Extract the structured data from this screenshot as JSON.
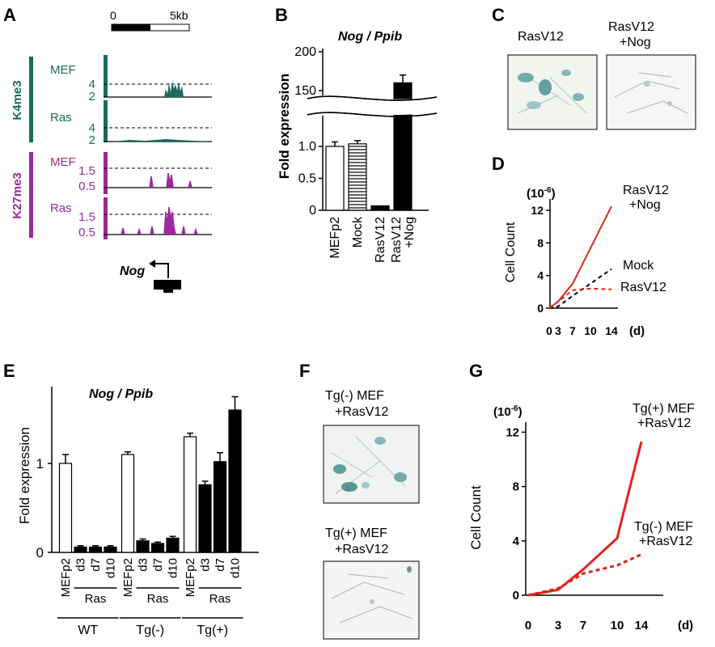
{
  "figure": {
    "panels": {
      "A": "A",
      "B": "B",
      "C": "C",
      "D": "D",
      "E": "E",
      "F": "F",
      "G": "G"
    }
  },
  "panel_a": {
    "scale_start": "0",
    "scale_end": "5kb",
    "k4_group": "K4me3",
    "k27_group": "K27me3",
    "track_labels": [
      "MEF",
      "Ras",
      "MEF",
      "Ras"
    ],
    "k4_ticks": [
      "4",
      "2"
    ],
    "k27_ticks": [
      "1.5",
      "0.5"
    ],
    "gene": "Nog",
    "colors": {
      "k4me3": "#1a6b5a",
      "k27me3": "#9b2a9b"
    }
  },
  "panel_c": {
    "label_left": "RasV12",
    "label_right_line1": "RasV12",
    "label_right_line2": "+Nog"
  },
  "panel_f": {
    "top_line1": "Tg(-) MEF",
    "top_line2": "+RasV12",
    "bottom_line1": "Tg(+) MEF",
    "bottom_line2": "+RasV12"
  },
  "chart_data": [
    {
      "id": "B",
      "type": "bar",
      "title": "Nog / Ppib",
      "ylabel": "Fold expression",
      "categories": [
        "MEFp2",
        "Mock",
        "RasV12",
        "RasV12\n+Nog"
      ],
      "values": [
        1.0,
        1.04,
        0.07,
        160
      ],
      "errors": [
        0.07,
        0.05,
        0.0,
        10
      ],
      "fills": [
        "white",
        "hatched",
        "black",
        "black"
      ],
      "yticks": [
        "0",
        "0.5",
        "1.0",
        "150",
        "200"
      ],
      "broken_axis": true
    },
    {
      "id": "D",
      "type": "line",
      "ylabel": "Cell Count",
      "unit": "(10",
      "unit_exp": "-6",
      "unit_close": ")",
      "x": [
        0,
        3,
        7,
        10,
        14
      ],
      "xticks": [
        "0",
        "3",
        "7",
        "10",
        "14"
      ],
      "x_unit": "(d)",
      "yticks": [
        "0",
        "4",
        "8",
        "12"
      ],
      "ylim": [
        0,
        13
      ],
      "series": [
        {
          "name": "RasV12\n+Nog",
          "label_line1": "RasV12",
          "label_line2": "+Nog",
          "values": [
            0,
            0.8,
            3.0,
            null,
            12.5
          ],
          "color": "#e0241b",
          "dash": false
        },
        {
          "name": "Mock",
          "label_line1": "Mock",
          "values": [
            0,
            0.2,
            1.5,
            3.0,
            4.8
          ],
          "color": "#000000",
          "dash": true
        },
        {
          "name": "RasV12",
          "label_line1": "RasV12",
          "values": [
            0,
            0.8,
            2.2,
            2.4,
            2.3
          ],
          "color": "#e0241b",
          "dash": true
        }
      ]
    },
    {
      "id": "E",
      "type": "bar",
      "title": "Nog / Ppib",
      "ylabel": "Fold expression",
      "yticks": [
        "0",
        "1"
      ],
      "ylim": [
        0,
        1.8
      ],
      "groups": [
        {
          "name": "WT",
          "sub": "Ras",
          "bars": [
            {
              "label": "MEFp2",
              "value": 1.0,
              "err": 0.1,
              "fill": "white"
            },
            {
              "label": "d3",
              "value": 0.06,
              "err": 0.015,
              "fill": "black"
            },
            {
              "label": "d7",
              "value": 0.06,
              "err": 0.015,
              "fill": "black"
            },
            {
              "label": "d10",
              "value": 0.06,
              "err": 0.015,
              "fill": "black"
            }
          ]
        },
        {
          "name": "Tg(-)",
          "sub": "Ras",
          "bars": [
            {
              "label": "MEFp2",
              "value": 1.1,
              "err": 0.03,
              "fill": "white"
            },
            {
              "label": "d3",
              "value": 0.13,
              "err": 0.02,
              "fill": "black"
            },
            {
              "label": "d7",
              "value": 0.1,
              "err": 0.015,
              "fill": "black"
            },
            {
              "label": "d10",
              "value": 0.16,
              "err": 0.02,
              "fill": "black"
            }
          ]
        },
        {
          "name": "Tg(+)",
          "sub": "Ras",
          "bars": [
            {
              "label": "MEFp2",
              "value": 1.3,
              "err": 0.04,
              "fill": "white"
            },
            {
              "label": "d3",
              "value": 0.76,
              "err": 0.04,
              "fill": "black"
            },
            {
              "label": "d7",
              "value": 1.02,
              "err": 0.1,
              "fill": "black"
            },
            {
              "label": "d10",
              "value": 1.6,
              "err": 0.15,
              "fill": "black"
            }
          ]
        }
      ]
    },
    {
      "id": "G",
      "type": "line",
      "ylabel": "Cell Count",
      "unit": "(10",
      "unit_exp": "-6",
      "unit_close": ")",
      "x": [
        0,
        3,
        7,
        10,
        14
      ],
      "xticks": [
        "0",
        "3",
        "7",
        "10",
        "14"
      ],
      "x_unit": "(d)",
      "yticks": [
        "0",
        "4",
        "8",
        "12"
      ],
      "ylim": [
        0,
        12.5
      ],
      "series": [
        {
          "name": "Tg(+) MEF\n+RasV12",
          "label_line1": "Tg(+) MEF",
          "label_line2": "+RasV12",
          "values": [
            0,
            0.4,
            1.9,
            4.2,
            11.3
          ],
          "color": "#e0241b",
          "dash": false
        },
        {
          "name": "Tg(-) MEF\n+RasV12",
          "label_line1": "Tg(-) MEF",
          "label_line2": "+RasV12",
          "values": [
            0,
            0.5,
            1.6,
            2.2,
            3.0
          ],
          "color": "#e0241b",
          "dash": true
        }
      ]
    }
  ]
}
